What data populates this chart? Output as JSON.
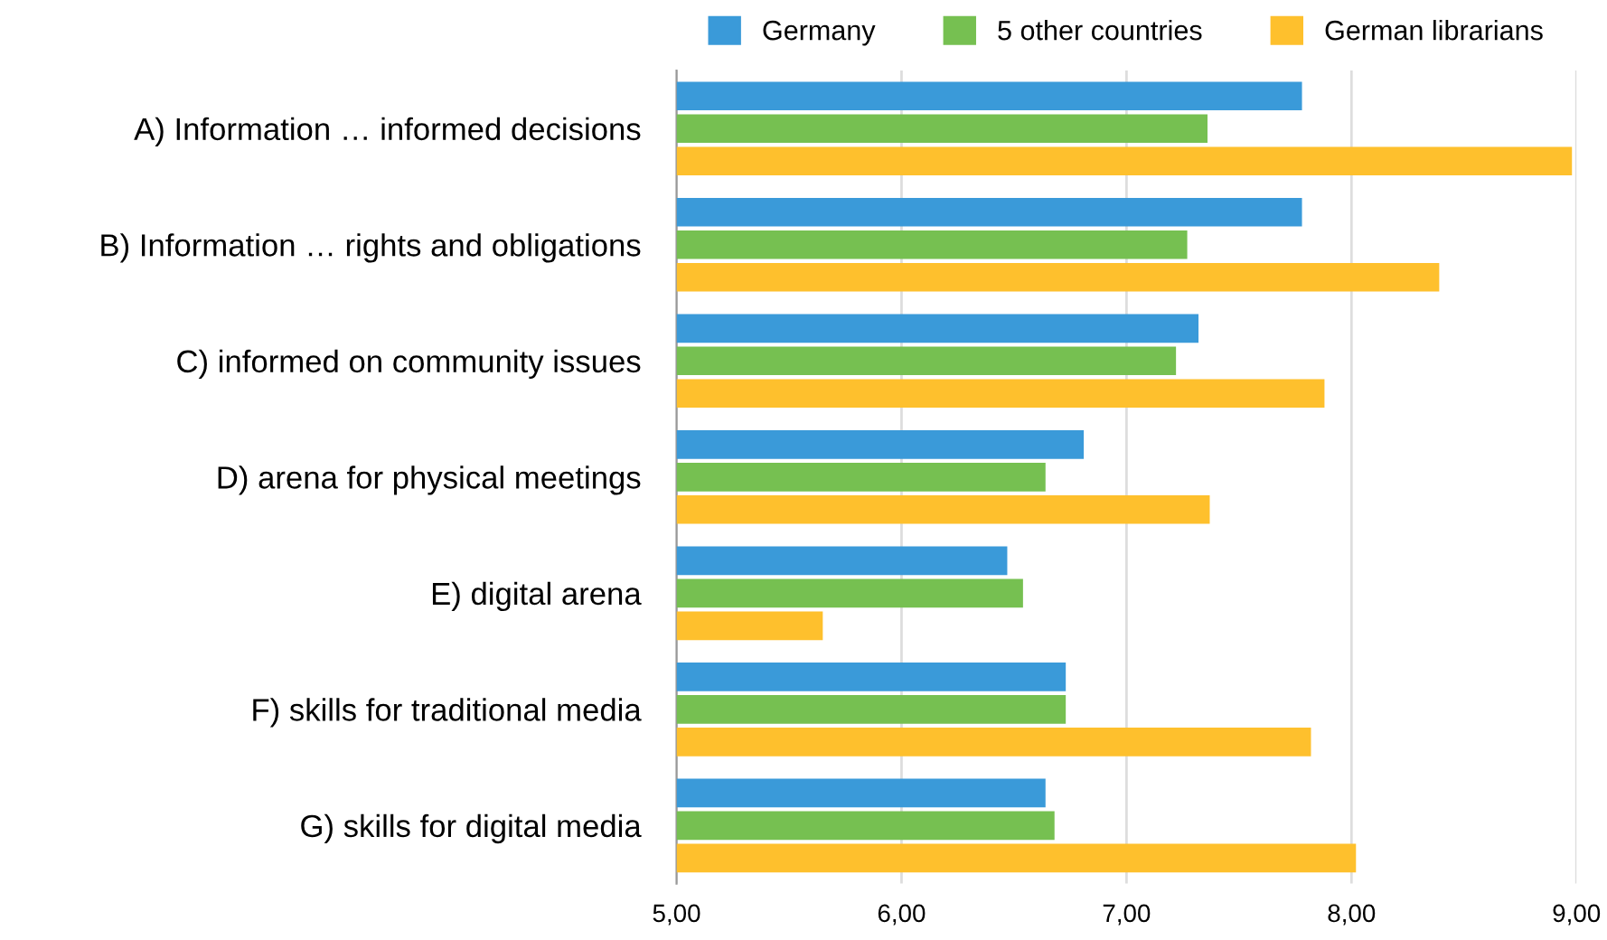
{
  "chart_data": {
    "type": "bar",
    "orientation": "horizontal",
    "categories": [
      "A) Information … informed decisions",
      "B) Information … rights and obligations",
      "C) informed on community issues",
      "D) arena for physical meetings",
      "E) digital arena",
      "F) skills for traditional media",
      "G) skills for digital media"
    ],
    "series": [
      {
        "name": "Germany",
        "color": "#3a9ad9",
        "values": [
          7.78,
          7.78,
          7.32,
          6.81,
          6.47,
          6.73,
          6.64
        ]
      },
      {
        "name": "5 other countries",
        "color": "#76c051",
        "values": [
          7.36,
          7.27,
          7.22,
          6.64,
          6.54,
          6.73,
          6.68
        ]
      },
      {
        "name": "German librarians",
        "color": "#fec02d",
        "values": [
          8.98,
          8.39,
          7.88,
          7.37,
          5.65,
          7.82,
          8.02
        ]
      }
    ],
    "xlim": [
      5,
      9
    ],
    "xticks": [
      {
        "value": 5,
        "label": "5,00"
      },
      {
        "value": 6,
        "label": "6,00"
      },
      {
        "value": 7,
        "label": "7,00"
      },
      {
        "value": 8,
        "label": "8,00"
      },
      {
        "value": 9,
        "label": "9,00"
      }
    ],
    "grid": "x",
    "legend": "top"
  }
}
